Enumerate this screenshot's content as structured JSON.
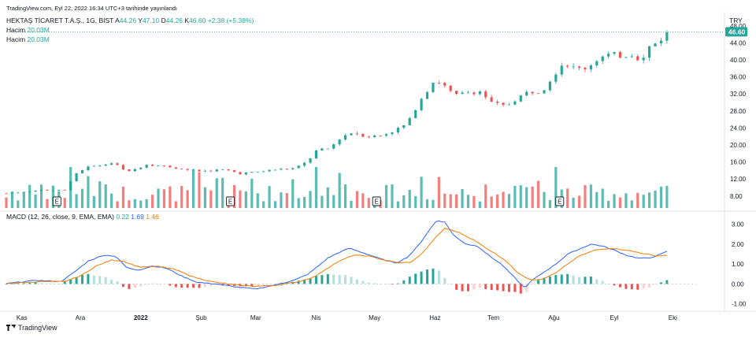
{
  "header": {
    "published": "TradingView.com, Eyl 22, 2022 16:34 UTC+3 tarihinde yayınlandı",
    "symbol": "HEKTAŞ TİCARET T.A.Ş., 1G, BIST",
    "ohlc": {
      "a_label": "A",
      "a": "44.26",
      "y_label": "Y",
      "y": "47.10",
      "d_label": "D",
      "d": "44.26",
      "k_label": "K",
      "k": "46.60",
      "change": "+2.38 (+5.38%)"
    },
    "volume_lines": [
      {
        "label": "Hacim",
        "value": "20.03M"
      },
      {
        "label": "Hacim",
        "value": "20.03M"
      }
    ],
    "currency": "TRY"
  },
  "macd_legend": {
    "label": "MACD (12, 26, close, 9, EMA, EMA)",
    "hist": "0.22",
    "macd": "1.69",
    "signal": "1.46"
  },
  "footer": {
    "brand": "TradingView"
  },
  "colors": {
    "up": "#26a69a",
    "down": "#ef5350",
    "macd": "#2962ff",
    "signal": "#f57c00",
    "hist_up": "#26a69a",
    "hist_up_fade": "#b2dfdb",
    "hist_down": "#ef5350",
    "hist_down_fade": "#ffcdd2"
  },
  "chart_data": {
    "type": "candlestick",
    "title": "HEKTAŞ TİCARET T.A.Ş., 1G, BIST",
    "last_price": "46.60",
    "price_ylim": [
      5,
      47.6
    ],
    "price_ticks": [
      "48.00",
      "44.00",
      "40.00",
      "36.00",
      "32.00",
      "28.00",
      "24.00",
      "20.00",
      "16.00",
      "12.00",
      "8.00"
    ],
    "macd_ylim": [
      -1.25,
      3.5
    ],
    "macd_ticks": [
      "3.00",
      "2.00",
      "1.00",
      "0.00",
      "-1.00"
    ],
    "x_labels": [
      {
        "label": "Kas",
        "day": 8
      },
      {
        "label": "Ara",
        "day": 38
      },
      {
        "label": "2022",
        "day": 69
      },
      {
        "label": "Şub",
        "day": 100
      },
      {
        "label": "Mar",
        "day": 128
      },
      {
        "label": "Nis",
        "day": 159
      },
      {
        "label": "May",
        "day": 189
      },
      {
        "label": "Haz",
        "day": 220
      },
      {
        "label": "Tem",
        "day": 250
      },
      {
        "label": "Ağu",
        "day": 281
      },
      {
        "label": "Eyl",
        "day": 312
      },
      {
        "label": "Eki",
        "day": 342
      }
    ],
    "x_range": [
      0,
      354
    ],
    "earnings_days": [
      26,
      115,
      190,
      284
    ],
    "earnings_label": "E",
    "price_path": [
      [
        0,
        8.6
      ],
      [
        18,
        9.4
      ],
      [
        30,
        9.3
      ],
      [
        35,
        13.2
      ],
      [
        42,
        14.8
      ],
      [
        48,
        15.2
      ],
      [
        55,
        15.8
      ],
      [
        62,
        13.5
      ],
      [
        72,
        15.5
      ],
      [
        85,
        14.8
      ],
      [
        98,
        13.8
      ],
      [
        112,
        14.2
      ],
      [
        120,
        13.3
      ],
      [
        128,
        13.6
      ],
      [
        138,
        14.2
      ],
      [
        148,
        14.5
      ],
      [
        155,
        16.2
      ],
      [
        158,
        18.5
      ],
      [
        166,
        19.2
      ],
      [
        172,
        22.0
      ],
      [
        178,
        23.0
      ],
      [
        185,
        22.0
      ],
      [
        192,
        22.2
      ],
      [
        200,
        23.6
      ],
      [
        206,
        25.0
      ],
      [
        212,
        30.5
      ],
      [
        217,
        33.5
      ],
      [
        220,
        35.5
      ],
      [
        224,
        34.2
      ],
      [
        230,
        31.5
      ],
      [
        238,
        32.5
      ],
      [
        244,
        32.6
      ],
      [
        248,
        30.0
      ],
      [
        256,
        29.0
      ],
      [
        262,
        31.0
      ],
      [
        268,
        32.5
      ],
      [
        275,
        32.8
      ],
      [
        280,
        36.0
      ],
      [
        286,
        39.5
      ],
      [
        292,
        37.8
      ],
      [
        298,
        38.2
      ],
      [
        304,
        40.5
      ],
      [
        310,
        41.2
      ],
      [
        316,
        41.0
      ],
      [
        322,
        41.5
      ],
      [
        326,
        39.5
      ],
      [
        330,
        43.0
      ],
      [
        334,
        44.2
      ],
      [
        340,
        46.6
      ]
    ],
    "volume_scale_millions": 20.03,
    "macd_path": [
      [
        0,
        0.02
      ],
      [
        15,
        0.18
      ],
      [
        28,
        0.12
      ],
      [
        35,
        0.6
      ],
      [
        42,
        1.15
      ],
      [
        50,
        1.45
      ],
      [
        56,
        1.4
      ],
      [
        62,
        0.8
      ],
      [
        68,
        0.7
      ],
      [
        75,
        0.9
      ],
      [
        82,
        0.8
      ],
      [
        90,
        0.4
      ],
      [
        98,
        0.08
      ],
      [
        108,
        0.0
      ],
      [
        118,
        -0.15
      ],
      [
        128,
        -0.25
      ],
      [
        138,
        -0.05
      ],
      [
        148,
        0.2
      ],
      [
        155,
        0.5
      ],
      [
        160,
        0.9
      ],
      [
        165,
        1.3
      ],
      [
        170,
        1.55
      ],
      [
        176,
        1.8
      ],
      [
        182,
        1.6
      ],
      [
        188,
        1.4
      ],
      [
        194,
        1.2
      ],
      [
        200,
        1.05
      ],
      [
        206,
        1.35
      ],
      [
        212,
        2.0
      ],
      [
        217,
        2.7
      ],
      [
        221,
        3.2
      ],
      [
        225,
        3.1
      ],
      [
        230,
        2.4
      ],
      [
        236,
        2.0
      ],
      [
        242,
        1.9
      ],
      [
        248,
        1.4
      ],
      [
        254,
        1.0
      ],
      [
        260,
        0.4
      ],
      [
        266,
        -0.2
      ],
      [
        270,
        0.2
      ],
      [
        276,
        0.6
      ],
      [
        282,
        1.0
      ],
      [
        288,
        1.5
      ],
      [
        294,
        1.75
      ],
      [
        300,
        2.0
      ],
      [
        306,
        1.9
      ],
      [
        312,
        1.7
      ],
      [
        318,
        1.45
      ],
      [
        324,
        1.3
      ],
      [
        330,
        1.3
      ],
      [
        336,
        1.5
      ],
      [
        340,
        1.69
      ]
    ],
    "signal_path": [
      [
        0,
        0.02
      ],
      [
        18,
        0.12
      ],
      [
        30,
        0.12
      ],
      [
        38,
        0.4
      ],
      [
        46,
        0.9
      ],
      [
        54,
        1.2
      ],
      [
        60,
        1.15
      ],
      [
        68,
        0.85
      ],
      [
        78,
        0.88
      ],
      [
        86,
        0.75
      ],
      [
        96,
        0.35
      ],
      [
        106,
        0.1
      ],
      [
        118,
        -0.05
      ],
      [
        128,
        -0.12
      ],
      [
        140,
        -0.05
      ],
      [
        150,
        0.12
      ],
      [
        158,
        0.35
      ],
      [
        164,
        0.75
      ],
      [
        170,
        1.1
      ],
      [
        178,
        1.45
      ],
      [
        186,
        1.4
      ],
      [
        194,
        1.2
      ],
      [
        202,
        1.05
      ],
      [
        208,
        1.1
      ],
      [
        214,
        1.6
      ],
      [
        220,
        2.3
      ],
      [
        225,
        2.8
      ],
      [
        232,
        2.6
      ],
      [
        240,
        2.2
      ],
      [
        248,
        1.7
      ],
      [
        256,
        1.2
      ],
      [
        262,
        0.6
      ],
      [
        268,
        0.25
      ],
      [
        274,
        0.2
      ],
      [
        282,
        0.55
      ],
      [
        288,
        1.0
      ],
      [
        294,
        1.4
      ],
      [
        302,
        1.7
      ],
      [
        310,
        1.8
      ],
      [
        318,
        1.7
      ],
      [
        326,
        1.55
      ],
      [
        334,
        1.4
      ],
      [
        340,
        1.46
      ]
    ]
  }
}
